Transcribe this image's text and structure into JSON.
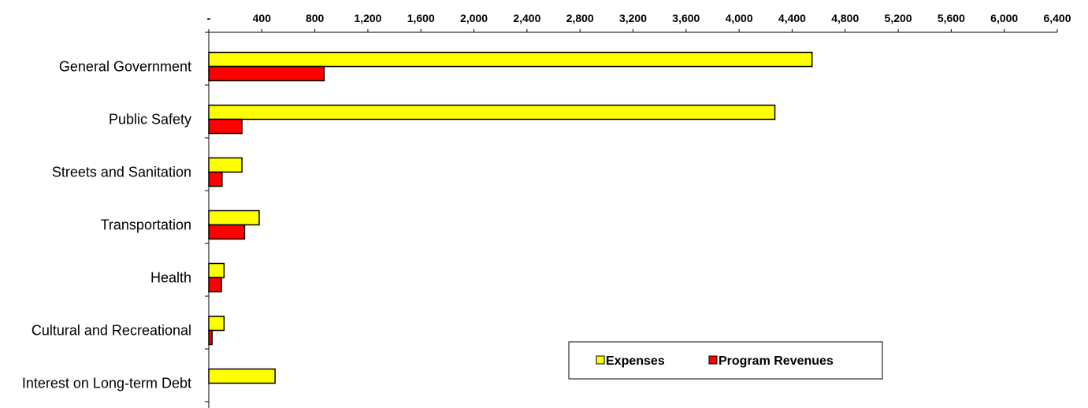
{
  "chart_data": {
    "type": "bar",
    "orientation": "horizontal",
    "categories": [
      "General Government",
      "Public Safety",
      "Streets and Sanitation",
      "Transportation",
      "Health",
      "Cultural and Recreational",
      "Interest on Long-term Debt"
    ],
    "series": [
      {
        "name": "Expenses",
        "color": "#ffff00",
        "values": [
          4550,
          4270,
          250,
          380,
          115,
          115,
          500
        ]
      },
      {
        "name": "Program Revenues",
        "color": "#ff0000",
        "values": [
          870,
          250,
          100,
          270,
          95,
          25,
          0
        ]
      }
    ],
    "xlim": [
      0,
      6400
    ],
    "x_ticks": [
      0,
      400,
      800,
      1200,
      1600,
      2000,
      2400,
      2800,
      3200,
      3600,
      4000,
      4400,
      4800,
      5200,
      5600,
      6000,
      6400
    ],
    "x_tick_labels": [
      "-",
      "400",
      "800",
      "1,200",
      "1,600",
      "2,000",
      "2,400",
      "2,800",
      "3,200",
      "3,600",
      "4,000",
      "4,400",
      "4,800",
      "5,200",
      "5,600",
      "6,000",
      "6,400"
    ],
    "axis_position": "top",
    "grid": false,
    "legend_position": "bottom-right"
  }
}
